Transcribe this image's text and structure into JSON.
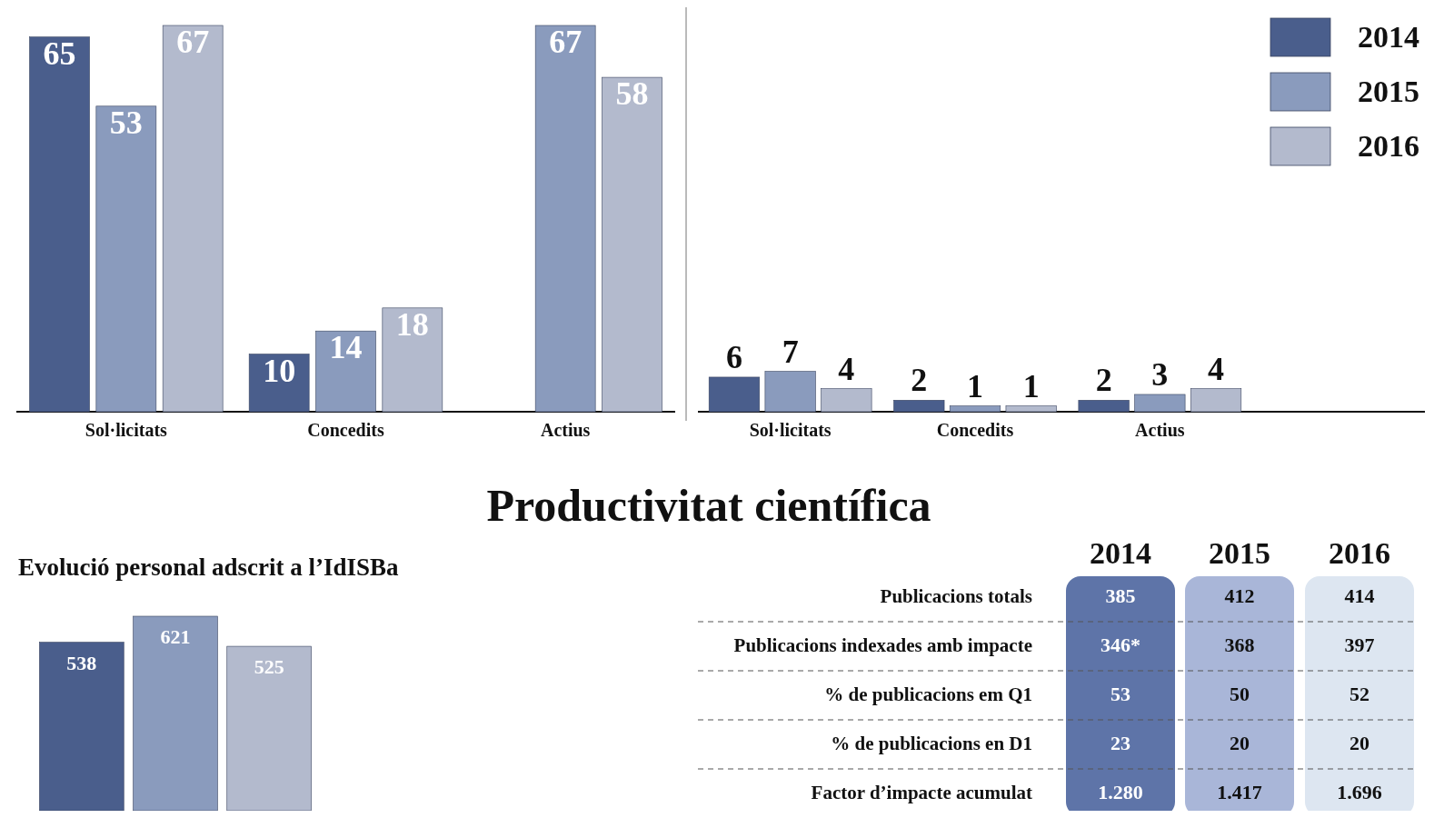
{
  "chart_data": [
    {
      "type": "bar",
      "categories": [
        "Sol·licitats",
        "Concedits",
        "Actius"
      ],
      "series": [
        {
          "color": "#4a5e8c",
          "values": [
            65,
            10,
            null
          ]
        },
        {
          "color": "#8a9bbd",
          "values": [
            53,
            14,
            67
          ]
        },
        {
          "color": "#b3bacd",
          "values": [
            67,
            18,
            58
          ]
        }
      ],
      "data_labels": true
    },
    {
      "type": "bar",
      "categories": [
        "Sol·licitats",
        "Concedits",
        "Actius"
      ],
      "series": [
        {
          "name": "2014",
          "color": "#4a5e8c",
          "values": [
            6,
            2,
            2
          ]
        },
        {
          "name": "2015",
          "color": "#8a9bbd",
          "values": [
            7,
            1,
            3
          ]
        },
        {
          "name": "2016",
          "color": "#b3bacd",
          "values": [
            4,
            1,
            4
          ]
        }
      ],
      "data_labels": true,
      "legend": "top right"
    },
    {
      "type": "bar",
      "title": "Evolució personal adscrit a l’IdISBa",
      "categories": [
        null
      ],
      "series": [
        {
          "color": "#4a5e8c",
          "values": [
            538
          ]
        },
        {
          "color": "#8a9bbd",
          "values": [
            621
          ]
        },
        {
          "color": "#b3bacd",
          "values": [
            525
          ]
        }
      ],
      "data_labels": true
    },
    {
      "type": "other",
      "title": "Productivitat científica",
      "categories": [
        "Publicacions totals",
        "Publicacions indexades amb impacte",
        "% de publicacions em Q1",
        "% de publicacions en D1",
        "Factor d’impacte acumulat"
      ],
      "series": [
        {
          "name": "2014",
          "color": "#5e74a8",
          "values": [
            385,
            346,
            53,
            23,
            1280
          ],
          "value_labels": [
            "385",
            "346*",
            "53",
            "23",
            "1.280"
          ]
        },
        {
          "name": "2015",
          "color": "#a9b6d8",
          "values": [
            412,
            368,
            50,
            20,
            1417
          ],
          "value_labels": [
            "412",
            "368",
            "50",
            "20",
            "1.417"
          ]
        },
        {
          "name": "2016",
          "color": "#dde6f1",
          "values": [
            414,
            397,
            52,
            20,
            1696
          ],
          "value_labels": [
            "414",
            "397",
            "52",
            "20",
            "1.696"
          ]
        }
      ]
    }
  ]
}
